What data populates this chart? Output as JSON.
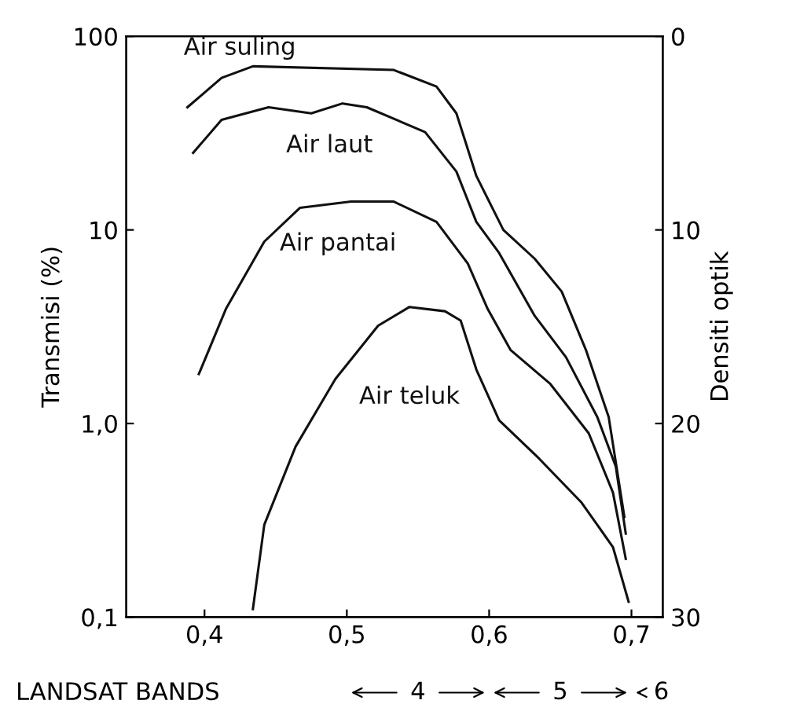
{
  "chart_data": {
    "type": "line",
    "ylabel": "Transmisi (%)",
    "y2label": "Densiti optik",
    "log": "y",
    "grid": false,
    "legend": false,
    "marker": "none",
    "line_style": "solid",
    "xlim": [
      0.345,
      0.722
    ],
    "ylim": [
      0.1,
      100
    ],
    "y2lim": [
      30,
      0
    ],
    "xticks": [
      {
        "value": 0.4,
        "label": "0,4"
      },
      {
        "value": 0.5,
        "label": "0,5"
      },
      {
        "value": 0.6,
        "label": "0,6"
      },
      {
        "value": 0.7,
        "label": "0,7"
      }
    ],
    "yticks": [
      {
        "value": 0.1,
        "label": "0,1"
      },
      {
        "value": 1,
        "label": "1,0"
      },
      10,
      100
    ],
    "y2ticks": [
      0,
      10,
      20,
      30
    ],
    "annotations": [
      "LANDSAT BANDS",
      "4",
      "5",
      "6"
    ],
    "series": [
      {
        "name": "Air suling",
        "color": "#111111",
        "x": [
          0.388,
          0.412,
          0.434,
          0.533,
          0.563,
          0.577,
          0.591,
          0.61,
          0.632,
          0.651,
          0.668,
          0.684,
          0.695
        ],
        "values": [
          43,
          61,
          70,
          67,
          55,
          40,
          19,
          10,
          7.1,
          4.8,
          2.4,
          1.08,
          0.33
        ]
      },
      {
        "name": "Air laut",
        "color": "#111111",
        "x": [
          0.392,
          0.412,
          0.445,
          0.475,
          0.497,
          0.514,
          0.555,
          0.577,
          0.591,
          0.607,
          0.632,
          0.654,
          0.676,
          0.689,
          0.696
        ],
        "values": [
          25,
          37,
          43,
          40,
          45,
          43,
          32,
          20,
          11,
          7.6,
          3.6,
          2.2,
          1.08,
          0.6,
          0.27
        ]
      },
      {
        "name": "Air pantai",
        "color": "#111111",
        "x": [
          0.396,
          0.415,
          0.442,
          0.467,
          0.503,
          0.533,
          0.563,
          0.585,
          0.599,
          0.615,
          0.643,
          0.67,
          0.687,
          0.696
        ],
        "values": [
          1.8,
          3.9,
          8.7,
          13,
          14,
          14,
          11,
          6.7,
          3.9,
          2.4,
          1.6,
          0.89,
          0.44,
          0.2
        ]
      },
      {
        "name": "Air teluk",
        "color": "#111111",
        "x": [
          0.434,
          0.442,
          0.464,
          0.492,
          0.522,
          0.544,
          0.569,
          0.58,
          0.591,
          0.607,
          0.635,
          0.665,
          0.687,
          0.698
        ],
        "values": [
          0.11,
          0.3,
          0.76,
          1.7,
          3.2,
          4.0,
          3.8,
          3.4,
          1.9,
          1.04,
          0.66,
          0.39,
          0.23,
          0.12
        ]
      }
    ]
  }
}
